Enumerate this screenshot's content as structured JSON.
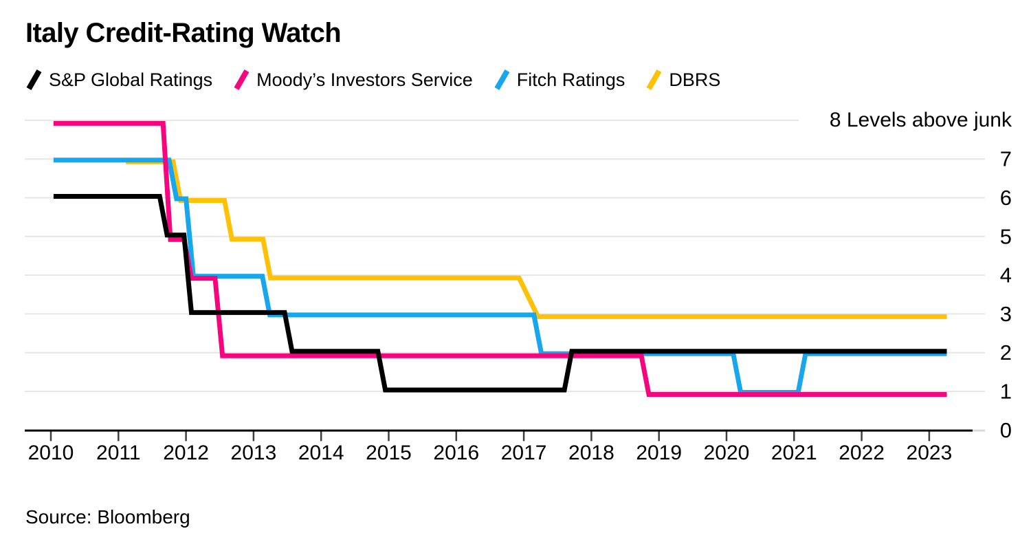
{
  "title": "Italy Credit-Rating Watch",
  "source": "Source: Bloomberg",
  "legend": [
    {
      "id": "sp",
      "label": "S&P Global Ratings",
      "color": "#000000"
    },
    {
      "id": "moodys",
      "label": "Moody’s Investors Service",
      "color": "#f5067f"
    },
    {
      "id": "fitch",
      "label": "Fitch Ratings",
      "color": "#18a7ec"
    },
    {
      "id": "dbrs",
      "label": "DBRS",
      "color": "#ffc107"
    }
  ],
  "chart_data": {
    "type": "line",
    "subtype": "step",
    "title": "Italy Credit-Rating Watch",
    "y_unit": "Levels above junk",
    "top_right_label": "8 Levels above junk",
    "grid": true,
    "legend_position": "top",
    "ylim": [
      0,
      8
    ],
    "x_ticks": [
      2010,
      2011,
      2012,
      2013,
      2014,
      2015,
      2016,
      2017,
      2018,
      2019,
      2020,
      2021,
      2022,
      2023
    ],
    "y_ticks_right": [
      7,
      6,
      5,
      4,
      3,
      2,
      1,
      0
    ],
    "x_range": [
      2010.04,
      2023.26
    ],
    "series": [
      {
        "id": "sp",
        "name": "S&P Global Ratings",
        "color": "#000000",
        "points": [
          [
            2010.04,
            6
          ],
          [
            2011.61,
            6
          ],
          [
            2011.72,
            5
          ],
          [
            2011.97,
            5
          ],
          [
            2012.08,
            3
          ],
          [
            2013.46,
            3
          ],
          [
            2013.57,
            2
          ],
          [
            2014.84,
            2
          ],
          [
            2014.95,
            1
          ],
          [
            2017.6,
            1
          ],
          [
            2017.71,
            2
          ],
          [
            2023.26,
            2
          ]
        ]
      },
      {
        "id": "moodys",
        "name": "Moody’s Investors Service",
        "color": "#f5067f",
        "points": [
          [
            2010.04,
            8
          ],
          [
            2011.66,
            8
          ],
          [
            2011.77,
            5
          ],
          [
            2011.97,
            5
          ],
          [
            2012.08,
            4
          ],
          [
            2012.43,
            4
          ],
          [
            2012.54,
            2
          ],
          [
            2018.74,
            2
          ],
          [
            2018.85,
            1
          ],
          [
            2023.26,
            1
          ]
        ]
      },
      {
        "id": "fitch",
        "name": "Fitch Ratings",
        "color": "#18a7ec",
        "points": [
          [
            2010.04,
            7
          ],
          [
            2011.75,
            7
          ],
          [
            2011.86,
            6
          ],
          [
            2012.0,
            6
          ],
          [
            2012.11,
            4
          ],
          [
            2013.13,
            4
          ],
          [
            2013.24,
            3
          ],
          [
            2017.15,
            3
          ],
          [
            2017.26,
            2
          ],
          [
            2020.1,
            2
          ],
          [
            2020.21,
            1
          ],
          [
            2021.06,
            1
          ],
          [
            2021.17,
            2
          ],
          [
            2023.26,
            2
          ]
        ]
      },
      {
        "id": "dbrs",
        "name": "DBRS",
        "color": "#ffc107",
        "points": [
          [
            2011.11,
            7
          ],
          [
            2011.81,
            7
          ],
          [
            2011.92,
            6
          ],
          [
            2012.57,
            6
          ],
          [
            2012.68,
            5
          ],
          [
            2013.14,
            5
          ],
          [
            2013.25,
            4
          ],
          [
            2016.93,
            4
          ],
          [
            2017.21,
            3
          ],
          [
            2023.26,
            3
          ]
        ]
      }
    ]
  }
}
